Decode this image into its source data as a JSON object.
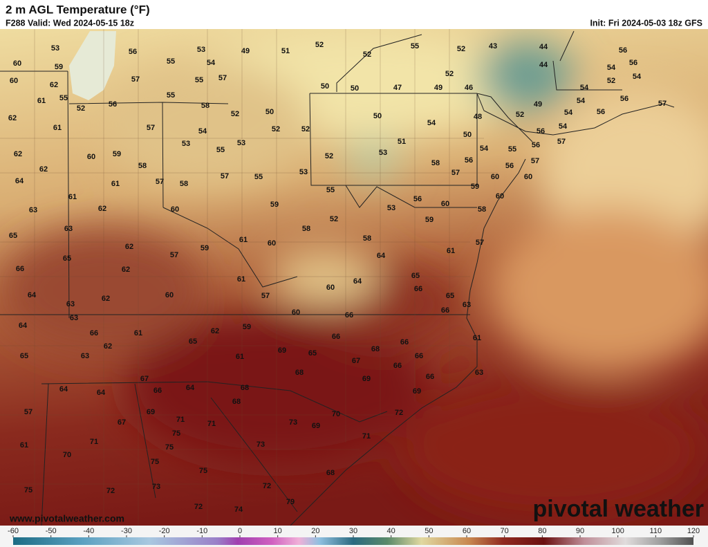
{
  "header": {
    "title": "2 m AGL Temperature (°F)",
    "valid": "F288 Valid: Wed 2024-05-15 18z",
    "init": "Init: Fri 2024-05-03 18z GFS"
  },
  "map": {
    "values": [
      53,
      56,
      53,
      49,
      51,
      52,
      52,
      55,
      52,
      43,
      44,
      56,
      60,
      59,
      55,
      54,
      56,
      44,
      54,
      60,
      62,
      57,
      55,
      57,
      52,
      52,
      54,
      61,
      55,
      52,
      56,
      55,
      50,
      50,
      47,
      49,
      46,
      54,
      54,
      56,
      57,
      62,
      61,
      57,
      58,
      52,
      50,
      50,
      48,
      52,
      49,
      54,
      56,
      54,
      52,
      52,
      54,
      50,
      56,
      54,
      53,
      55,
      53,
      51,
      54,
      55,
      57,
      56,
      62,
      60,
      59,
      58,
      53,
      52,
      58,
      56,
      57,
      62,
      64,
      61,
      57,
      58,
      57,
      55,
      53,
      57,
      56,
      60,
      60,
      61,
      55,
      59,
      60,
      63,
      62,
      60,
      59,
      56,
      53,
      60,
      58,
      63,
      65,
      52,
      58,
      59,
      61,
      62,
      59,
      60,
      58,
      57,
      61,
      66,
      65,
      57,
      64,
      62,
      61,
      65,
      64,
      60,
      66,
      64,
      62,
      60,
      57,
      65,
      63,
      63,
      60,
      66,
      66,
      63,
      64,
      66,
      61,
      62,
      59,
      66,
      66,
      61,
      65,
      62,
      65,
      63,
      61,
      69,
      65,
      68,
      66,
      67,
      66,
      63,
      67,
      68,
      66,
      69,
      64,
      64,
      66,
      64,
      68,
      68,
      69,
      57,
      69,
      67,
      71,
      71,
      73,
      70,
      69,
      72,
      75,
      71,
      71,
      61,
      75,
      73,
      70,
      75,
      75,
      68,
      75,
      72,
      73,
      72,
      72,
      74,
      79
    ]
  },
  "footer": {
    "url": "www.pivotalweather.com",
    "brand": "pivotal weather"
  },
  "colorbar": {
    "ticks": [
      -60,
      -50,
      -40,
      -30,
      -20,
      -10,
      0,
      10,
      20,
      30,
      40,
      50,
      60,
      70,
      80,
      90,
      100,
      110,
      120
    ]
  }
}
